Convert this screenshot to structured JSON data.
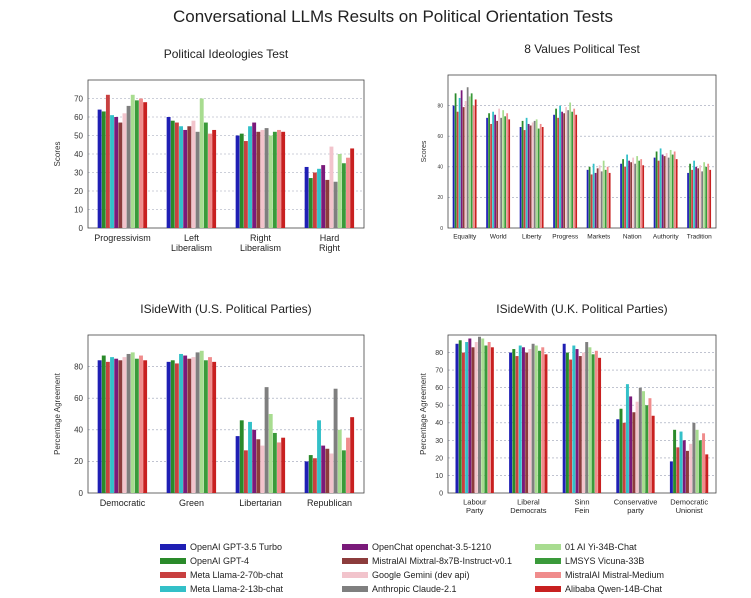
{
  "title": "Conversational LLMs Results on Political Orientation Tests",
  "series": [
    {
      "name": "OpenAI GPT-3.5 Turbo",
      "color": "#1f1fb4"
    },
    {
      "name": "OpenAI GPT-4",
      "color": "#2a8a2a"
    },
    {
      "name": "Meta Llama-2-70b-chat",
      "color": "#c84040"
    },
    {
      "name": "Meta Llama-2-13b-chat",
      "color": "#33c0c8"
    },
    {
      "name": "OpenChat openchat-3.5-1210",
      "color": "#7a1a7a"
    },
    {
      "name": "MistralAI Mixtral-8x7B-Instruct-v0.1",
      "color": "#8c3c3c"
    },
    {
      "name": "Google Gemini (dev api)",
      "color": "#f2c4cc"
    },
    {
      "name": "Anthropic Claude-2.1",
      "color": "#7f7f7f"
    },
    {
      "name": "01 AI Yi-34B-Chat",
      "color": "#a8dc90"
    },
    {
      "name": "LMSYS Vicuna-33B",
      "color": "#3a9a3a"
    },
    {
      "name": "MistralAI Mistral-Medium",
      "color": "#f08c8c"
    },
    {
      "name": "Alibaba Qwen-14B-Chat",
      "color": "#c82020"
    }
  ],
  "chart_data": [
    {
      "type": "bar",
      "title": "Political Ideologies Test",
      "ylabel": "Scores",
      "xlabel": "",
      "ylim": [
        0,
        80
      ],
      "yticks": [
        0,
        10,
        20,
        30,
        40,
        50,
        60,
        70
      ],
      "grid": true,
      "categories": [
        "Progressivism",
        "Left\nLiberalism",
        "Right\nLiberalism",
        "Hard\nRight"
      ],
      "values": [
        [
          64,
          63,
          72,
          61,
          60,
          57,
          62,
          66,
          72,
          69,
          70,
          68
        ],
        [
          60,
          58,
          57,
          55,
          53,
          55,
          58,
          52,
          70,
          57,
          51,
          53
        ],
        [
          50,
          51,
          47,
          55,
          57,
          52,
          53,
          54,
          50,
          52,
          53,
          52
        ],
        [
          33,
          27,
          30,
          32,
          34,
          26,
          44,
          25,
          40,
          35,
          38,
          43
        ]
      ]
    },
    {
      "type": "bar",
      "title": "8 Values Political Test",
      "ylabel": "Scores",
      "xlabel": "",
      "ylim": [
        0,
        100
      ],
      "yticks": [
        0,
        20,
        40,
        60,
        80
      ],
      "grid": true,
      "categories": [
        "Equality",
        "World",
        "Liberty",
        "Progress",
        "Markets",
        "Nation",
        "Authority",
        "Tradition"
      ],
      "values": [
        [
          80,
          88,
          76,
          85,
          90,
          79,
          83,
          92,
          86,
          88,
          80,
          84
        ],
        [
          72,
          75,
          68,
          76,
          74,
          70,
          78,
          72,
          77,
          73,
          75,
          71
        ],
        [
          66,
          70,
          64,
          72,
          68,
          67,
          69,
          70,
          71,
          65,
          68,
          66
        ],
        [
          74,
          78,
          72,
          80,
          76,
          75,
          79,
          77,
          82,
          76,
          78,
          74
        ],
        [
          38,
          40,
          35,
          42,
          36,
          39,
          41,
          37,
          44,
          38,
          40,
          36
        ],
        [
          42,
          45,
          40,
          48,
          44,
          43,
          46,
          42,
          47,
          44,
          45,
          41
        ],
        [
          46,
          50,
          44,
          52,
          48,
          47,
          49,
          46,
          51,
          48,
          50,
          45
        ],
        [
          36,
          42,
          38,
          44,
          40,
          39,
          41,
          37,
          43,
          40,
          42,
          38
        ]
      ]
    },
    {
      "type": "bar",
      "title": "ISideWith (U.S. Political Parties)",
      "ylabel": "Percentage Agreement",
      "xlabel": "",
      "ylim": [
        0,
        100
      ],
      "yticks": [
        0,
        20,
        40,
        60,
        80
      ],
      "grid": true,
      "categories": [
        "Democratic",
        "Green",
        "Libertarian",
        "Republican"
      ],
      "values": [
        [
          84,
          87,
          83,
          86,
          85,
          84,
          86,
          88,
          89,
          85,
          87,
          84
        ],
        [
          83,
          84,
          82,
          88,
          87,
          85,
          86,
          89,
          90,
          84,
          86,
          83
        ],
        [
          36,
          46,
          27,
          45,
          40,
          34,
          30,
          67,
          50,
          38,
          32,
          35
        ],
        [
          20,
          24,
          22,
          46,
          30,
          28,
          25,
          66,
          40,
          27,
          35,
          48
        ]
      ]
    },
    {
      "type": "bar",
      "title": "ISideWith (U.K. Political Parties)",
      "ylabel": "Percentage Agreement",
      "xlabel": "",
      "ylim": [
        0,
        90
      ],
      "yticks": [
        0,
        10,
        20,
        30,
        40,
        50,
        60,
        70,
        80
      ],
      "grid": true,
      "categories": [
        "Labour\nParty",
        "Liberal\nDemocrats",
        "Sinn\nFein",
        "Conservative\nparty",
        "Democratic\nUnionist"
      ],
      "values": [
        [
          85,
          87,
          80,
          86,
          88,
          83,
          86,
          89,
          88,
          84,
          86,
          83
        ],
        [
          80,
          82,
          78,
          84,
          83,
          80,
          82,
          85,
          84,
          81,
          83,
          79
        ],
        [
          85,
          80,
          76,
          84,
          82,
          78,
          80,
          86,
          83,
          79,
          81,
          77
        ],
        [
          42,
          48,
          40,
          62,
          55,
          46,
          52,
          60,
          58,
          50,
          54,
          44
        ],
        [
          18,
          36,
          26,
          35,
          30,
          24,
          28,
          40,
          36,
          30,
          34,
          22
        ]
      ]
    }
  ]
}
